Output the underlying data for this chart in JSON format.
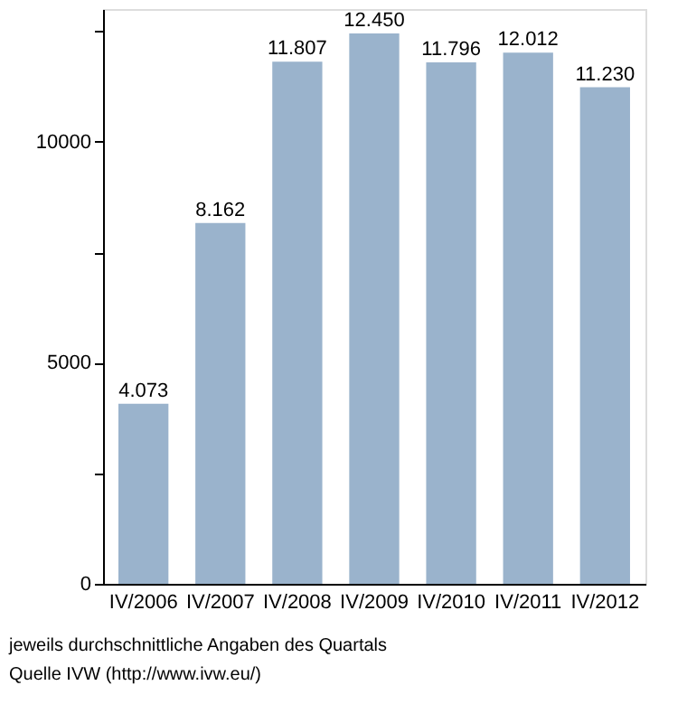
{
  "chart_data": {
    "type": "bar",
    "categories": [
      "IV/2006",
      "IV/2007",
      "IV/2008",
      "IV/2009",
      "IV/2010",
      "IV/2011",
      "IV/2012"
    ],
    "values": [
      4073,
      8162,
      11807,
      12450,
      11796,
      12012,
      11230
    ],
    "value_labels": [
      "4.073",
      "8.162",
      "11.807",
      "12.450",
      "11.796",
      "12.012",
      "11.230"
    ],
    "color": "#9ab3cc",
    "ylim": [
      0,
      13000
    ],
    "yticks": [
      0,
      {
        "value": 2500,
        "label": null
      },
      5000,
      {
        "value": 7500,
        "label": null
      },
      10000,
      {
        "value": 12500,
        "label": null
      }
    ],
    "grid": false,
    "annotations": [
      "jeweils durchschnittliche Angaben des Quartals",
      "Quelle IVW (http://www.ivw.eu/)"
    ]
  }
}
